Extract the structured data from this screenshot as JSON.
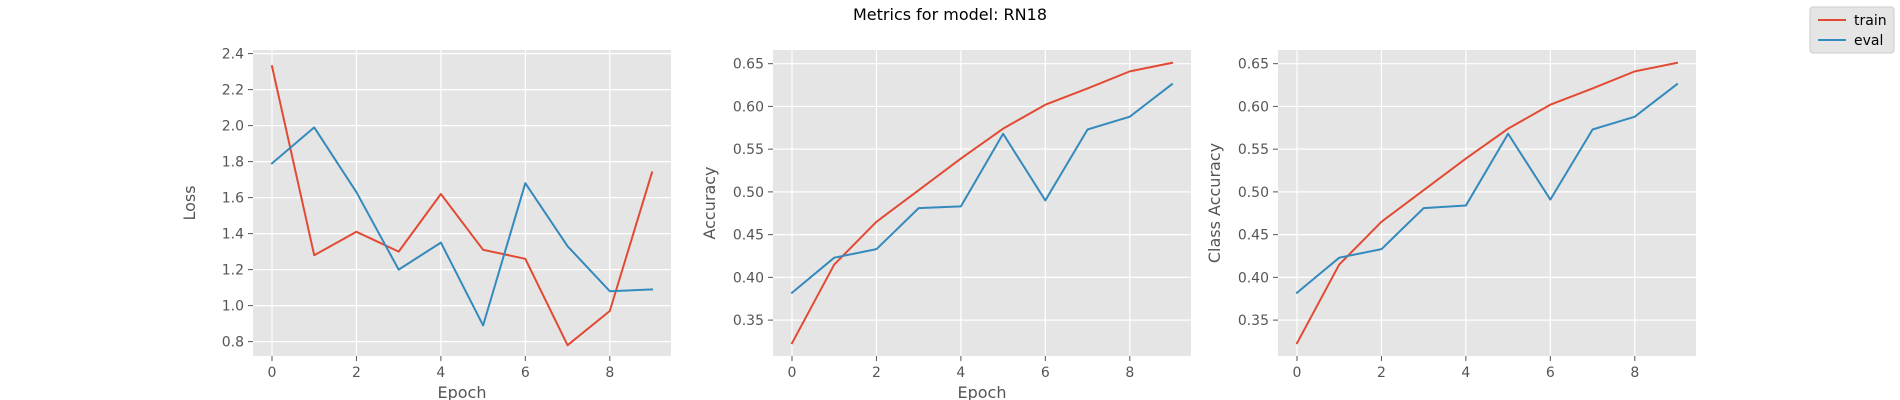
{
  "figure": {
    "title": "Metrics for model: RN18"
  },
  "legend": {
    "placement": "top-right",
    "entries": [
      {
        "label": "train",
        "color": "#E24A33"
      },
      {
        "label": "eval",
        "color": "#348ABD"
      }
    ]
  },
  "colors": {
    "axes_background": "#E5E5E5",
    "grid": "#FFFFFF",
    "text": "#555555"
  },
  "chart_data": [
    {
      "type": "line",
      "xlabel": "Epoch",
      "ylabel": "Loss",
      "grid": true,
      "xlim": [
        -0.45,
        9.45
      ],
      "ylim": [
        0.72,
        2.42
      ],
      "xticks": [
        0,
        2,
        4,
        6,
        8
      ],
      "yticks": [
        0.8,
        1.0,
        1.2,
        1.4,
        1.6,
        1.8,
        2.0,
        2.2,
        2.4
      ],
      "x": [
        0,
        1,
        2,
        3,
        4,
        5,
        6,
        7,
        8,
        9
      ],
      "series": [
        {
          "name": "train",
          "color": "#E24A33",
          "values": [
            2.33,
            1.28,
            1.41,
            1.3,
            1.62,
            1.31,
            1.26,
            0.78,
            0.97,
            1.74
          ]
        },
        {
          "name": "eval",
          "color": "#348ABD",
          "values": [
            1.79,
            1.99,
            1.63,
            1.2,
            1.35,
            0.89,
            1.68,
            1.33,
            1.08,
            1.09
          ]
        }
      ]
    },
    {
      "type": "line",
      "xlabel": "Epoch",
      "ylabel": "Accuracy",
      "grid": true,
      "xlim": [
        -0.45,
        9.45
      ],
      "ylim": [
        0.308,
        0.666
      ],
      "xticks": [
        0,
        2,
        4,
        6,
        8
      ],
      "yticks": [
        0.35,
        0.4,
        0.45,
        0.5,
        0.55,
        0.6,
        0.65
      ],
      "x": [
        0,
        1,
        2,
        3,
        4,
        5,
        6,
        7,
        8,
        9
      ],
      "series": [
        {
          "name": "train",
          "color": "#E24A33",
          "values": [
            0.323,
            0.415,
            0.465,
            0.502,
            0.539,
            0.574,
            0.602,
            0.621,
            0.641,
            0.651
          ]
        },
        {
          "name": "eval",
          "color": "#348ABD",
          "values": [
            0.382,
            0.423,
            0.433,
            0.481,
            0.483,
            0.568,
            0.49,
            0.573,
            0.588,
            0.626
          ]
        }
      ]
    },
    {
      "type": "line",
      "xlabel": "",
      "ylabel": "Class Accuracy",
      "grid": true,
      "xlim": [
        -0.45,
        9.45
      ],
      "ylim": [
        0.308,
        0.666
      ],
      "xticks": [
        0,
        2,
        4,
        6,
        8
      ],
      "yticks": [
        0.35,
        0.4,
        0.45,
        0.5,
        0.55,
        0.6,
        0.65
      ],
      "x": [
        0,
        1,
        2,
        3,
        4,
        5,
        6,
        7,
        8,
        9
      ],
      "series": [
        {
          "name": "train",
          "color": "#E24A33",
          "values": [
            0.323,
            0.415,
            0.465,
            0.502,
            0.539,
            0.574,
            0.602,
            0.621,
            0.641,
            0.651
          ]
        },
        {
          "name": "eval",
          "color": "#348ABD",
          "values": [
            0.382,
            0.423,
            0.433,
            0.481,
            0.484,
            0.568,
            0.491,
            0.573,
            0.588,
            0.626
          ]
        }
      ]
    }
  ]
}
